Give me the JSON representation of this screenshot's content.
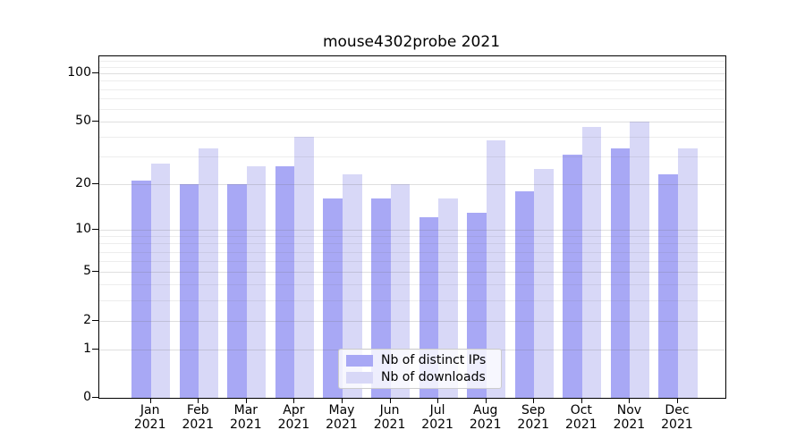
{
  "title": "mouse4302probe 2021",
  "legend": {
    "items": [
      {
        "label": "Nb of distinct IPs",
        "color": "#a8a8f5"
      },
      {
        "label": "Nb of downloads",
        "color": "#d8d8f7"
      }
    ]
  },
  "axes": {
    "y_tick_values": [
      100,
      50,
      20,
      10,
      5,
      2,
      1,
      0
    ],
    "y_tick_labels": [
      "100",
      "50",
      "20",
      "10",
      "5",
      "2",
      "1",
      "0"
    ],
    "y_minor_gridline_values": [
      3,
      4,
      6,
      7,
      8,
      9,
      30,
      40,
      60,
      70,
      80,
      90,
      110,
      120
    ],
    "x_tick_month_labels": [
      "Jan",
      "Feb",
      "Mar",
      "Apr",
      "May",
      "Jun",
      "Jul",
      "Aug",
      "Sep",
      "Oct",
      "Nov",
      "Dec"
    ],
    "x_tick_year_label": "2021"
  },
  "chart_data": {
    "type": "bar",
    "title": "mouse4302probe 2021",
    "categories": [
      "Jan 2021",
      "Feb 2021",
      "Mar 2021",
      "Apr 2021",
      "May 2021",
      "Jun 2021",
      "Jul 2021",
      "Aug 2021",
      "Sep 2021",
      "Oct 2021",
      "Nov 2021",
      "Dec 2021"
    ],
    "series": [
      {
        "name": "Nb of distinct IPs",
        "color": "#a8a8f5",
        "values": [
          21,
          20,
          20,
          26,
          16,
          16,
          12,
          13,
          18,
          31,
          34,
          23
        ]
      },
      {
        "name": "Nb of downloads",
        "color": "#d8d8f7",
        "values": [
          27,
          34,
          26,
          40,
          23,
          20,
          16,
          38,
          25,
          46,
          50,
          34
        ]
      }
    ],
    "xlabel": "",
    "ylabel": "",
    "yscale": "log1p",
    "ylim": [
      0,
      125
    ],
    "grid": true,
    "legend_position": "lower center"
  }
}
